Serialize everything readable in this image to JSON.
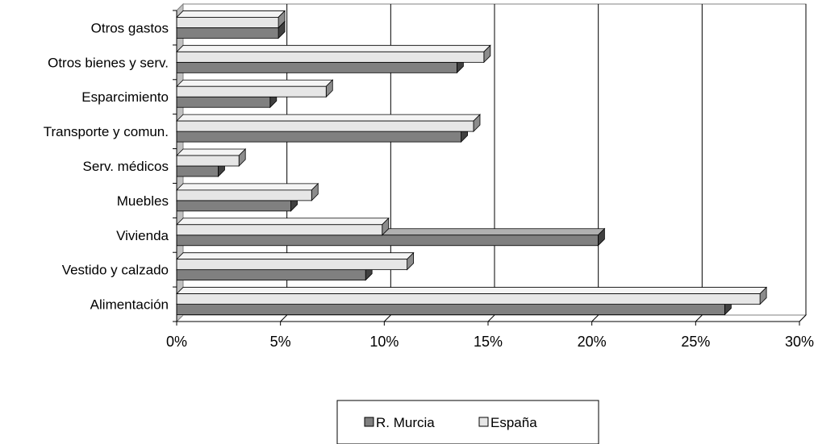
{
  "chart_data": {
    "type": "bar",
    "orientation": "horizontal",
    "style": "3d-clustered",
    "categories": [
      "Alimentación",
      "Vestido y calzado",
      "Vivienda",
      "Muebles",
      "Serv. médicos",
      "Transporte y comun.",
      "Esparcimiento",
      "Otros bienes y serv.",
      "Otros gastos"
    ],
    "series": [
      {
        "name": "R. Murcia",
        "color": "#808080",
        "values": [
          0.264,
          0.091,
          0.203,
          0.055,
          0.02,
          0.137,
          0.045,
          0.135,
          0.049
        ]
      },
      {
        "name": "España",
        "color": "#e6e6e6",
        "values": [
          0.281,
          0.111,
          0.099,
          0.065,
          0.03,
          0.143,
          0.072,
          0.148,
          0.049
        ]
      }
    ],
    "xlim": [
      0,
      0.3
    ],
    "xticks": [
      "0%",
      "5%",
      "10%",
      "15%",
      "20%",
      "25%",
      "30%"
    ],
    "grid": "vertical",
    "legend_position": "bottom"
  }
}
